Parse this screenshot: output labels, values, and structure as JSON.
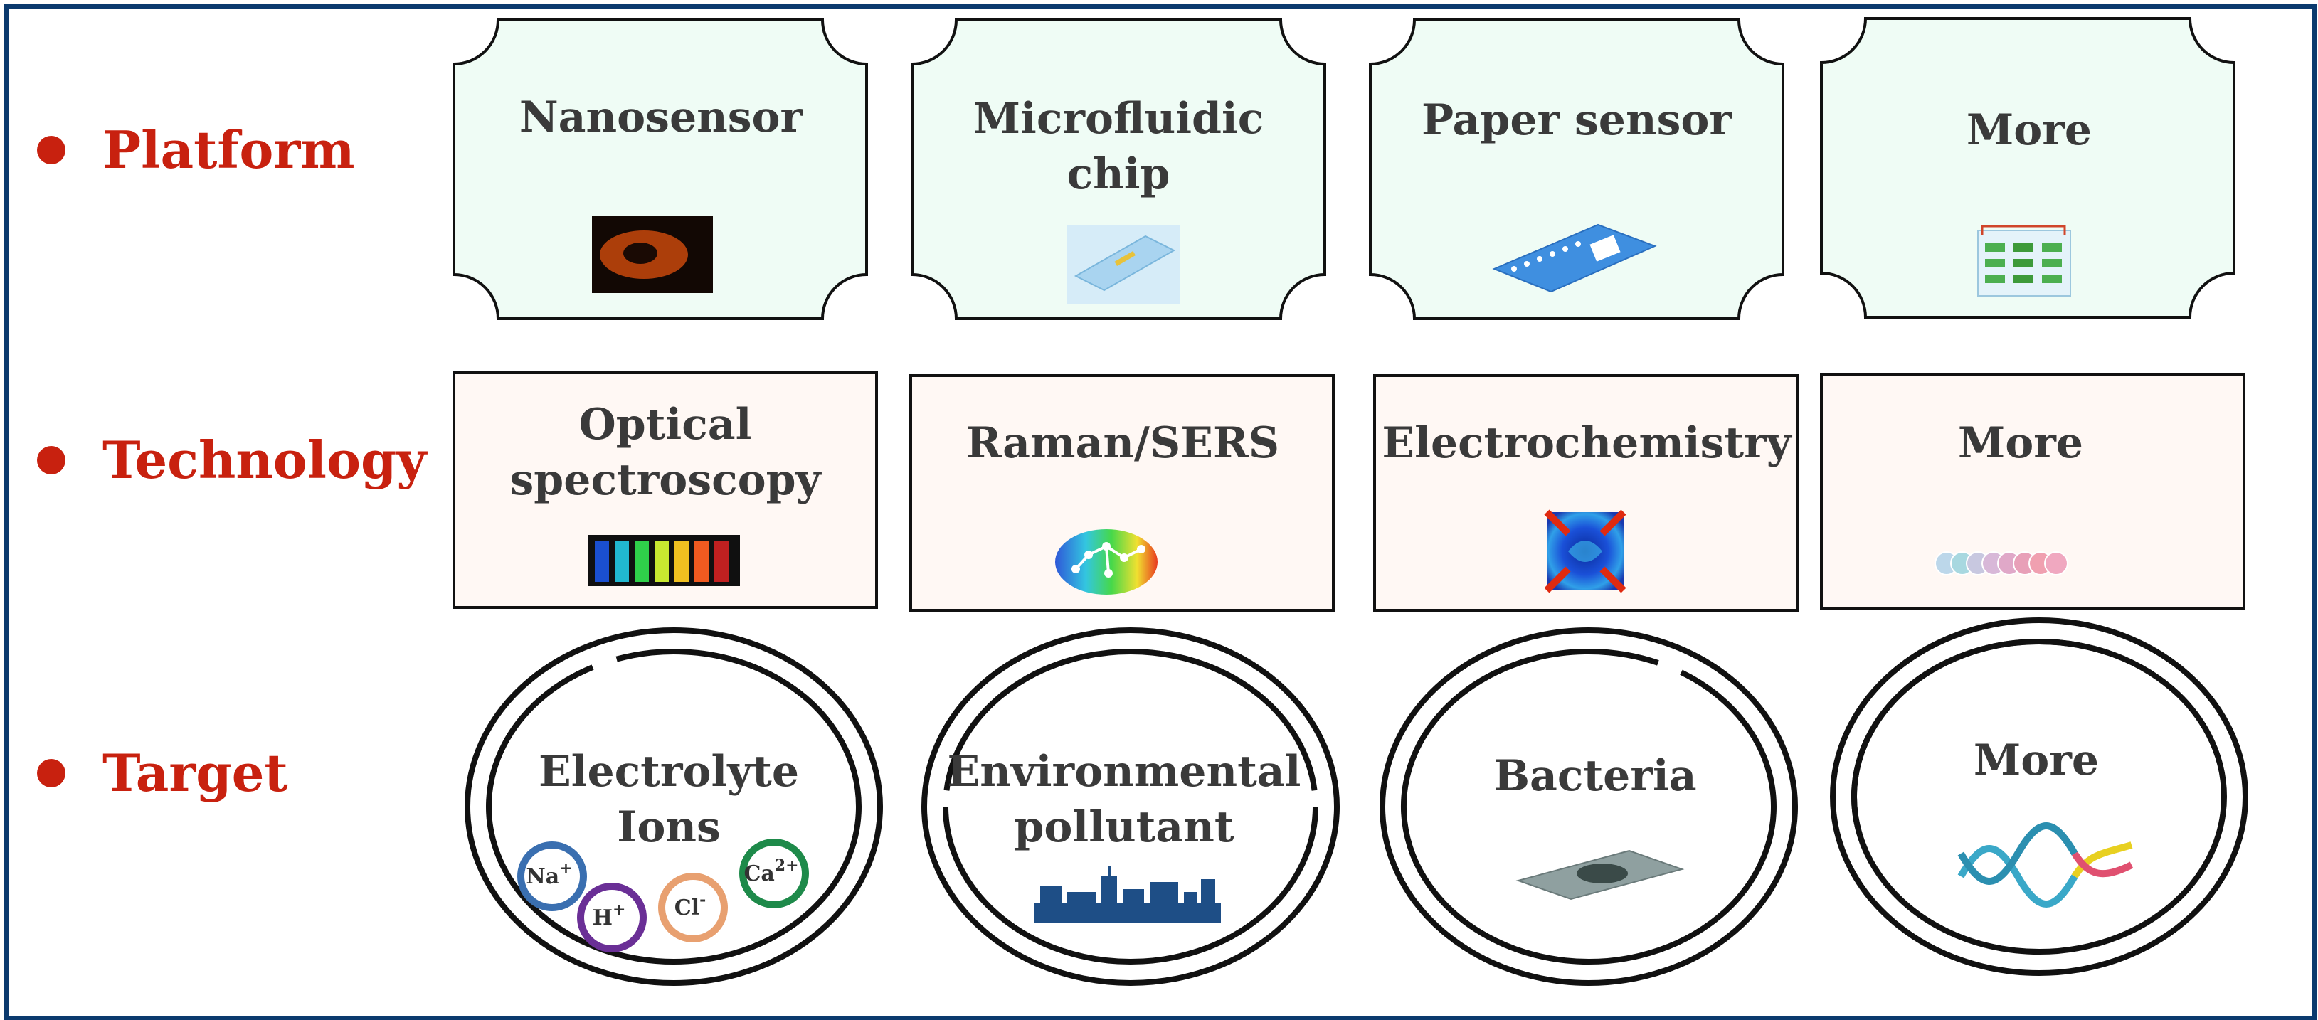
{
  "rows": [
    {
      "label": "Platform"
    },
    {
      "label": "Technology"
    },
    {
      "label": "Target"
    }
  ],
  "platform": {
    "cards": [
      {
        "title_lines": [
          "Nanosensor"
        ],
        "icon": "fluorescent-cell-image"
      },
      {
        "title_lines": [
          "Microfluidic",
          "chip"
        ],
        "icon": "microfluidic-chip-image"
      },
      {
        "title_lines": [
          "Paper sensor"
        ],
        "icon": "paper-sensor-image"
      },
      {
        "title_lines": [
          "More"
        ],
        "icon": "device-array-image"
      }
    ],
    "fill_color": "#effcf5"
  },
  "technology": {
    "cards": [
      {
        "title_lines": [
          "Optical",
          "spectroscopy"
        ],
        "icon": "colored-vials-image"
      },
      {
        "title_lines": [
          "Raman/SERS"
        ],
        "icon": "molecule-heatmap-image"
      },
      {
        "title_lines": [
          "Electrochemistry"
        ],
        "icon": "field-simulation-image"
      },
      {
        "title_lines": [
          "More"
        ],
        "icon": "bead-chain-image"
      }
    ],
    "fill_color": "#fff8f4"
  },
  "target": {
    "cards": [
      {
        "title_lines": [
          "Electrolyte",
          "Ions"
        ],
        "icon": "ion-circles"
      },
      {
        "title_lines": [
          "Environmental",
          "pollutant"
        ],
        "icon": "city-skyline-image"
      },
      {
        "title_lines": [
          "Bacteria"
        ],
        "icon": "bacteria-chip-image"
      },
      {
        "title_lines": [
          "More"
        ],
        "icon": "dna-helix-image"
      }
    ]
  },
  "ions": [
    {
      "base": "Na",
      "charge": "+",
      "color": "#3a6fb0"
    },
    {
      "base": "H",
      "charge": "+",
      "color": "#6a2f96"
    },
    {
      "base": "Cl",
      "charge": "-",
      "color": "#e8a070"
    },
    {
      "base": "Ca",
      "charge": "2+",
      "color": "#1e8a4a"
    }
  ],
  "colors": {
    "accent_red": "#c8210f",
    "frame_blue": "#0b3a6e",
    "title_gray": "#3a3a3a"
  }
}
